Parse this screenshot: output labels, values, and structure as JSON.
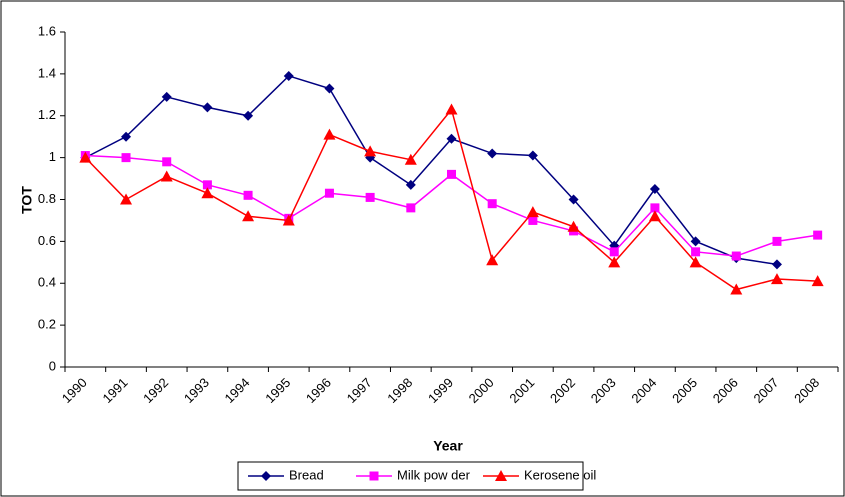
{
  "chart_data": {
    "type": "line",
    "x_label": "Year",
    "y_label": "TOT",
    "categories": [
      "1990",
      "1991",
      "1992",
      "1993",
      "1994",
      "1995",
      "1996",
      "1997",
      "1998",
      "1999",
      "2000",
      "2001",
      "2002",
      "2003",
      "2004",
      "2005",
      "2006",
      "2007",
      "2008"
    ],
    "series": [
      {
        "name": "Bread",
        "color": "#000080",
        "marker": "diamond",
        "values": [
          1.0,
          1.1,
          1.29,
          1.24,
          1.2,
          1.39,
          1.33,
          1.0,
          0.87,
          1.09,
          1.02,
          1.01,
          0.8,
          0.58,
          0.85,
          0.6,
          0.52,
          0.49,
          null
        ]
      },
      {
        "name": "Milk pow der",
        "color": "#ff00ff",
        "marker": "square",
        "values": [
          1.01,
          1.0,
          0.98,
          0.87,
          0.82,
          0.71,
          0.83,
          0.81,
          0.76,
          0.92,
          0.78,
          0.7,
          0.65,
          0.55,
          0.76,
          0.55,
          0.53,
          0.6,
          0.63
        ]
      },
      {
        "name": "Kerosene oil",
        "color": "#ff0000",
        "marker": "triangle",
        "values": [
          1.0,
          0.8,
          0.91,
          0.83,
          0.72,
          0.7,
          1.11,
          1.03,
          0.99,
          1.23,
          0.51,
          0.74,
          0.67,
          0.5,
          0.72,
          0.5,
          0.37,
          0.42,
          0.41
        ]
      }
    ],
    "ylim": [
      0,
      1.6
    ],
    "yticks": [
      0,
      0.2,
      0.4,
      0.6,
      0.8,
      1,
      1.2,
      1.4,
      1.6
    ],
    "grid": false,
    "legend": "bottom"
  }
}
